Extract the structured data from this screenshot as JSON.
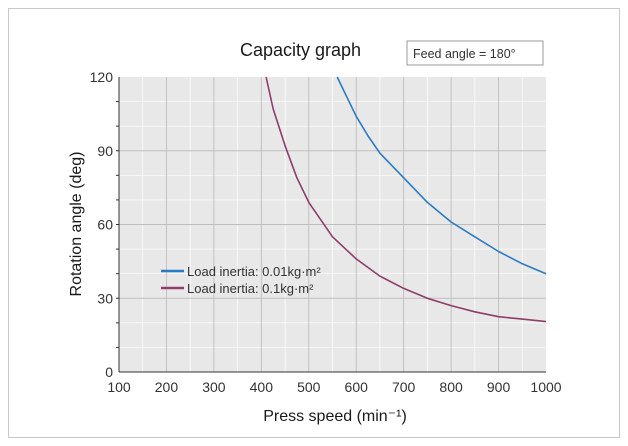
{
  "chart_data": {
    "type": "line",
    "title": "Capacity graph",
    "annotation": "Feed angle = 180°",
    "xlabel": "Press speed (min⁻¹)",
    "ylabel": "Rotation angle (deg)",
    "xlim": [
      100,
      1000
    ],
    "ylim": [
      0,
      120
    ],
    "x_ticks": [
      "100",
      "200",
      "300",
      "400",
      "500",
      "600",
      "700",
      "800",
      "900",
      "1000"
    ],
    "y_ticks": [
      "0",
      "30",
      "60",
      "90",
      "120"
    ],
    "grid": true,
    "legend_position": "middle-left",
    "series": [
      {
        "name": "Load inertia: 0.01kg·m²",
        "color": "#2b7bc4",
        "x": [
          560,
          580,
          600,
          625,
          650,
          700,
          750,
          800,
          850,
          900,
          950,
          1000
        ],
        "y": [
          120,
          112,
          104,
          96,
          89,
          79,
          69,
          61,
          55,
          49,
          44,
          40
        ]
      },
      {
        "name": "Load inertia: 0.1kg·m²",
        "color": "#8e3d6b",
        "x": [
          410,
          425,
          450,
          475,
          500,
          550,
          600,
          650,
          700,
          750,
          800,
          850,
          900,
          950,
          1000
        ],
        "y": [
          120,
          107,
          92,
          79,
          69,
          55,
          46,
          39,
          34,
          30,
          27,
          24.5,
          22.5,
          21.5,
          20.5
        ]
      }
    ]
  }
}
